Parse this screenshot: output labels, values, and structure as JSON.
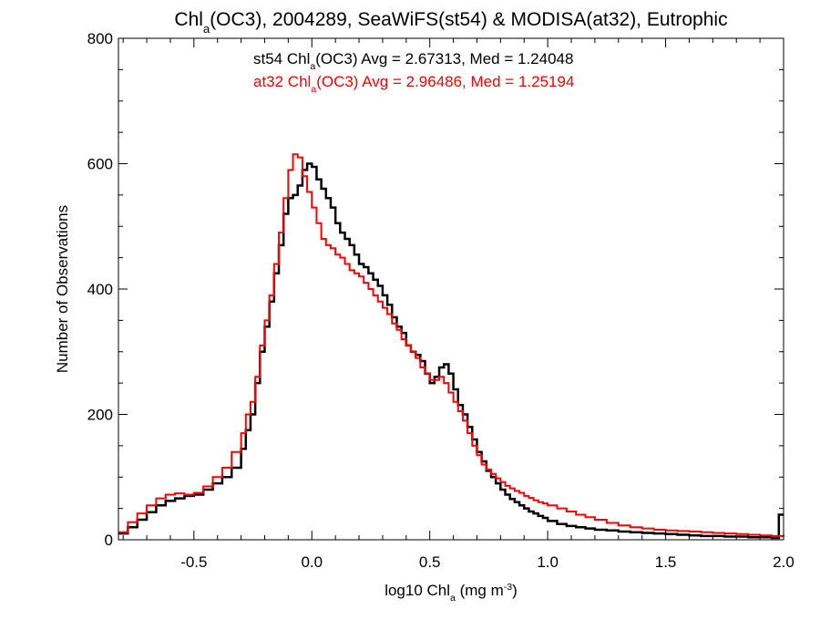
{
  "chart_data": {
    "type": "histogram",
    "title": "Chl_a(OC3), 2004289, SeaWiFS(st54) & MODISA(at32), Eutrophic",
    "xlabel": "log10 Chl_a (mg m^-3)",
    "ylabel": "Number of Observations",
    "xlim": [
      -0.82,
      2.0
    ],
    "ylim": [
      0,
      800
    ],
    "xticks": [
      -0.5,
      0.0,
      0.5,
      1.0,
      1.5,
      2.0
    ],
    "xtick_labels": [
      "-0.5",
      "0.0",
      "0.5",
      "1.0",
      "1.5",
      "2.0"
    ],
    "yticks": [
      0,
      200,
      400,
      600,
      800
    ],
    "ytick_labels": [
      "0",
      "200",
      "400",
      "600",
      "800"
    ],
    "grid": false,
    "annotations": [
      {
        "series": "st54",
        "text": "st54 Chl_a(OC3) Avg = 2.67313, Med = 1.24048",
        "color": "#000000"
      },
      {
        "series": "at32",
        "text": "at32 Chl_a(OC3) Avg = 2.96486, Med = 1.25194",
        "color": "#ff0000"
      }
    ],
    "series": [
      {
        "name": "st54",
        "color": "#000000",
        "stroke_width": 2.5,
        "points": [
          [
            -0.82,
            10
          ],
          [
            -0.78,
            20
          ],
          [
            -0.74,
            32
          ],
          [
            -0.7,
            44
          ],
          [
            -0.66,
            55
          ],
          [
            -0.62,
            62
          ],
          [
            -0.58,
            66
          ],
          [
            -0.54,
            70
          ],
          [
            -0.5,
            72
          ],
          [
            -0.46,
            80
          ],
          [
            -0.42,
            90
          ],
          [
            -0.38,
            100
          ],
          [
            -0.34,
            115
          ],
          [
            -0.3,
            145
          ],
          [
            -0.28,
            175
          ],
          [
            -0.26,
            200
          ],
          [
            -0.24,
            250
          ],
          [
            -0.22,
            300
          ],
          [
            -0.2,
            340
          ],
          [
            -0.18,
            380
          ],
          [
            -0.16,
            425
          ],
          [
            -0.14,
            470
          ],
          [
            -0.12,
            520
          ],
          [
            -0.1,
            545
          ],
          [
            -0.08,
            550
          ],
          [
            -0.06,
            565
          ],
          [
            -0.04,
            590
          ],
          [
            -0.02,
            600
          ],
          [
            0.0,
            595
          ],
          [
            0.02,
            575
          ],
          [
            0.04,
            560
          ],
          [
            0.06,
            545
          ],
          [
            0.08,
            530
          ],
          [
            0.1,
            505
          ],
          [
            0.12,
            490
          ],
          [
            0.14,
            480
          ],
          [
            0.16,
            470
          ],
          [
            0.18,
            455
          ],
          [
            0.2,
            440
          ],
          [
            0.22,
            435
          ],
          [
            0.24,
            425
          ],
          [
            0.26,
            415
          ],
          [
            0.28,
            405
          ],
          [
            0.3,
            390
          ],
          [
            0.32,
            375
          ],
          [
            0.34,
            355
          ],
          [
            0.36,
            340
          ],
          [
            0.38,
            330
          ],
          [
            0.4,
            310
          ],
          [
            0.42,
            300
          ],
          [
            0.44,
            295
          ],
          [
            0.46,
            285
          ],
          [
            0.48,
            265
          ],
          [
            0.5,
            250
          ],
          [
            0.52,
            260
          ],
          [
            0.54,
            275
          ],
          [
            0.56,
            280
          ],
          [
            0.58,
            265
          ],
          [
            0.6,
            240
          ],
          [
            0.62,
            215
          ],
          [
            0.64,
            200
          ],
          [
            0.66,
            180
          ],
          [
            0.68,
            160
          ],
          [
            0.7,
            140
          ],
          [
            0.72,
            125
          ],
          [
            0.74,
            110
          ],
          [
            0.76,
            100
          ],
          [
            0.78,
            90
          ],
          [
            0.8,
            80
          ],
          [
            0.82,
            72
          ],
          [
            0.84,
            65
          ],
          [
            0.86,
            60
          ],
          [
            0.88,
            55
          ],
          [
            0.9,
            50
          ],
          [
            0.92,
            45
          ],
          [
            0.94,
            42
          ],
          [
            0.96,
            38
          ],
          [
            0.98,
            35
          ],
          [
            1.0,
            30
          ],
          [
            1.04,
            25
          ],
          [
            1.08,
            22
          ],
          [
            1.12,
            20
          ],
          [
            1.16,
            18
          ],
          [
            1.2,
            16
          ],
          [
            1.25,
            15
          ],
          [
            1.3,
            13
          ],
          [
            1.35,
            12
          ],
          [
            1.4,
            11
          ],
          [
            1.45,
            10
          ],
          [
            1.5,
            9
          ],
          [
            1.55,
            8
          ],
          [
            1.6,
            7
          ],
          [
            1.65,
            6
          ],
          [
            1.7,
            6
          ],
          [
            1.75,
            5
          ],
          [
            1.8,
            5
          ],
          [
            1.85,
            4
          ],
          [
            1.9,
            4
          ],
          [
            1.95,
            3
          ],
          [
            1.98,
            40
          ],
          [
            2.0,
            40
          ]
        ]
      },
      {
        "name": "at32",
        "color": "#ff0000",
        "stroke_width": 2,
        "points": [
          [
            -0.82,
            12
          ],
          [
            -0.78,
            28
          ],
          [
            -0.74,
            42
          ],
          [
            -0.7,
            55
          ],
          [
            -0.66,
            66
          ],
          [
            -0.62,
            72
          ],
          [
            -0.58,
            74
          ],
          [
            -0.54,
            72
          ],
          [
            -0.5,
            75
          ],
          [
            -0.46,
            85
          ],
          [
            -0.42,
            100
          ],
          [
            -0.38,
            115
          ],
          [
            -0.34,
            140
          ],
          [
            -0.3,
            170
          ],
          [
            -0.28,
            200
          ],
          [
            -0.26,
            220
          ],
          [
            -0.24,
            260
          ],
          [
            -0.22,
            310
          ],
          [
            -0.2,
            350
          ],
          [
            -0.18,
            390
          ],
          [
            -0.16,
            440
          ],
          [
            -0.14,
            490
          ],
          [
            -0.12,
            545
          ],
          [
            -0.1,
            590
          ],
          [
            -0.08,
            615
          ],
          [
            -0.06,
            610
          ],
          [
            -0.04,
            580
          ],
          [
            -0.02,
            555
          ],
          [
            0.0,
            530
          ],
          [
            0.02,
            505
          ],
          [
            0.04,
            480
          ],
          [
            0.06,
            470
          ],
          [
            0.08,
            465
          ],
          [
            0.1,
            455
          ],
          [
            0.12,
            450
          ],
          [
            0.14,
            440
          ],
          [
            0.16,
            430
          ],
          [
            0.18,
            425
          ],
          [
            0.2,
            420
          ],
          [
            0.22,
            410
          ],
          [
            0.24,
            400
          ],
          [
            0.26,
            390
          ],
          [
            0.28,
            380
          ],
          [
            0.3,
            370
          ],
          [
            0.32,
            360
          ],
          [
            0.34,
            345
          ],
          [
            0.36,
            335
          ],
          [
            0.38,
            320
          ],
          [
            0.4,
            310
          ],
          [
            0.42,
            300
          ],
          [
            0.44,
            290
          ],
          [
            0.46,
            275
          ],
          [
            0.48,
            265
          ],
          [
            0.5,
            255
          ],
          [
            0.52,
            255
          ],
          [
            0.54,
            260
          ],
          [
            0.56,
            250
          ],
          [
            0.58,
            235
          ],
          [
            0.6,
            220
          ],
          [
            0.62,
            205
          ],
          [
            0.64,
            190
          ],
          [
            0.66,
            170
          ],
          [
            0.68,
            150
          ],
          [
            0.7,
            135
          ],
          [
            0.72,
            120
          ],
          [
            0.74,
            112
          ],
          [
            0.76,
            105
          ],
          [
            0.78,
            98
          ],
          [
            0.8,
            92
          ],
          [
            0.82,
            86
          ],
          [
            0.84,
            82
          ],
          [
            0.86,
            78
          ],
          [
            0.88,
            75
          ],
          [
            0.9,
            70
          ],
          [
            0.92,
            67
          ],
          [
            0.94,
            63
          ],
          [
            0.96,
            60
          ],
          [
            0.98,
            58
          ],
          [
            1.0,
            55
          ],
          [
            1.04,
            50
          ],
          [
            1.08,
            45
          ],
          [
            1.12,
            40
          ],
          [
            1.16,
            36
          ],
          [
            1.2,
            32
          ],
          [
            1.25,
            27
          ],
          [
            1.3,
            23
          ],
          [
            1.35,
            20
          ],
          [
            1.4,
            18
          ],
          [
            1.45,
            16
          ],
          [
            1.5,
            15
          ],
          [
            1.55,
            14
          ],
          [
            1.6,
            13
          ],
          [
            1.65,
            12
          ],
          [
            1.7,
            11
          ],
          [
            1.75,
            10
          ],
          [
            1.8,
            9
          ],
          [
            1.85,
            8
          ],
          [
            1.9,
            7
          ],
          [
            1.95,
            6
          ],
          [
            2.0,
            5
          ]
        ]
      }
    ]
  }
}
